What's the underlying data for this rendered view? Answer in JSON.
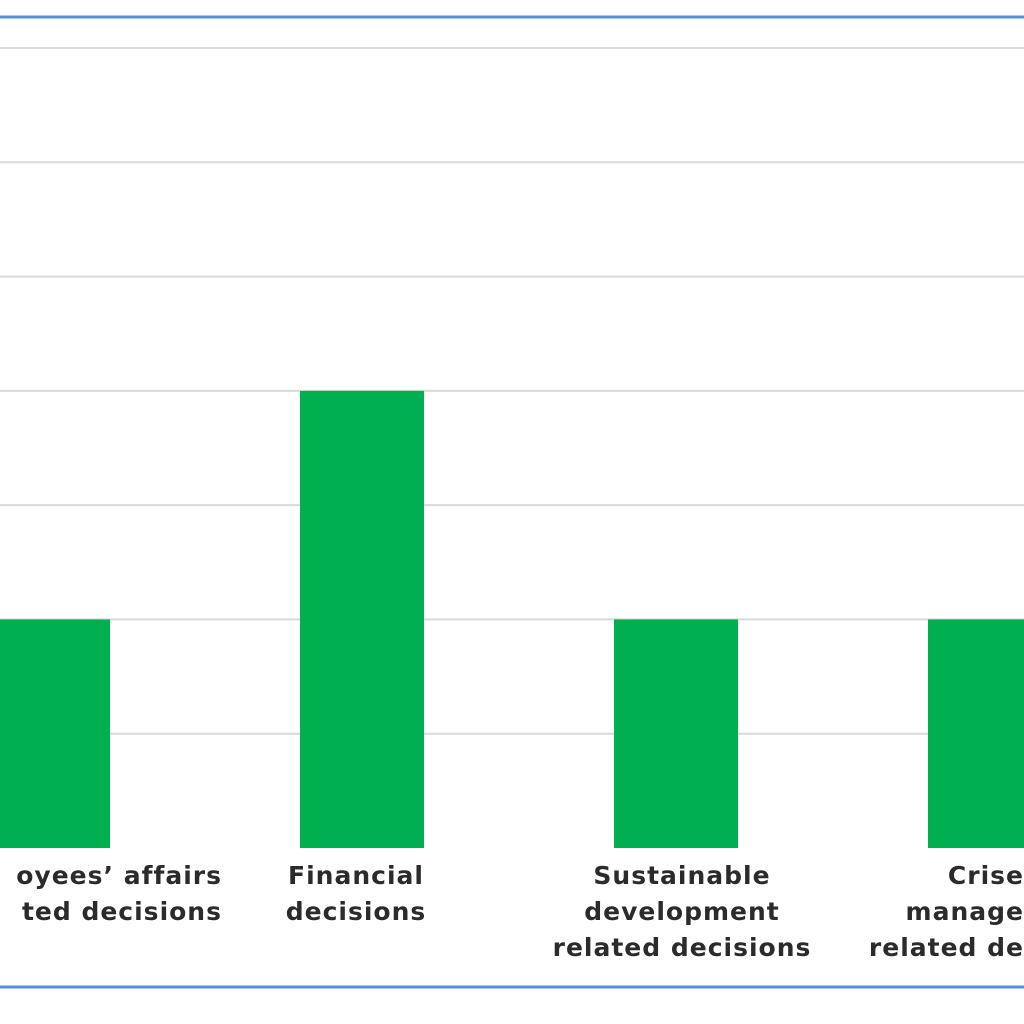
{
  "chart_data": {
    "type": "bar",
    "categories": [
      "Employees’ affairs related decisions",
      "Financial decisions",
      "Sustainable development related decisions",
      "Crises management related decisions"
    ],
    "category_label_lines": [
      [
        "oyees’ affairs",
        "ted decisions"
      ],
      [
        "Financial",
        "decisions"
      ],
      [
        "Sustainable",
        "development",
        "related decisions"
      ],
      [
        "Crise",
        "manage",
        "related de"
      ]
    ],
    "values": [
      2,
      4,
      2,
      2
    ],
    "ylim": [
      0,
      7
    ],
    "grid": true,
    "bar_color": "#00b050",
    "grid_color": "#d9d9d9",
    "frame_color": "#5b8fd6"
  }
}
